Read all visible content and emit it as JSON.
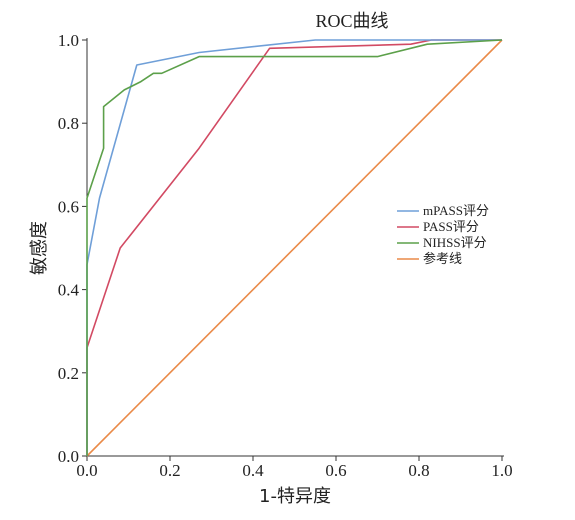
{
  "chart_data": {
    "type": "line",
    "title": "ROC曲线",
    "xlabel": "1-特异度",
    "ylabel": "敏感度",
    "xlim": [
      0,
      1
    ],
    "ylim": [
      0,
      1
    ],
    "x_ticks": [
      "0.0",
      "0.2",
      "0.4",
      "0.6",
      "0.8",
      "1.0"
    ],
    "y_ticks": [
      "0.0",
      "0.2",
      "0.4",
      "0.6",
      "0.8",
      "1.0"
    ],
    "grid": false,
    "legend_position": "right",
    "series": [
      {
        "name": "mPASS评分",
        "color": "#6f9fd8",
        "points": [
          [
            0,
            0
          ],
          [
            0,
            0.46
          ],
          [
            0.03,
            0.62
          ],
          [
            0.12,
            0.94
          ],
          [
            0.27,
            0.97
          ],
          [
            0.55,
            1.0
          ],
          [
            1.0,
            1.0
          ]
        ]
      },
      {
        "name": "PASS评分",
        "color": "#d24a63",
        "points": [
          [
            0,
            0
          ],
          [
            0,
            0.26
          ],
          [
            0.04,
            0.38
          ],
          [
            0.08,
            0.5
          ],
          [
            0.27,
            0.74
          ],
          [
            0.44,
            0.98
          ],
          [
            0.78,
            0.99
          ],
          [
            0.83,
            1.0
          ],
          [
            1.0,
            1.0
          ]
        ]
      },
      {
        "name": "NIHSS评分",
        "color": "#5ca04a",
        "points": [
          [
            0,
            0
          ],
          [
            0,
            0.26
          ],
          [
            0,
            0.62
          ],
          [
            0.04,
            0.74
          ],
          [
            0.04,
            0.84
          ],
          [
            0.09,
            0.88
          ],
          [
            0.13,
            0.9
          ],
          [
            0.16,
            0.92
          ],
          [
            0.18,
            0.92
          ],
          [
            0.27,
            0.96
          ],
          [
            0.7,
            0.96
          ],
          [
            0.82,
            0.99
          ],
          [
            1.0,
            1.0
          ]
        ]
      },
      {
        "name": "参考线",
        "color": "#ea8a48",
        "points": [
          [
            0,
            0
          ],
          [
            1,
            1
          ]
        ]
      }
    ]
  }
}
